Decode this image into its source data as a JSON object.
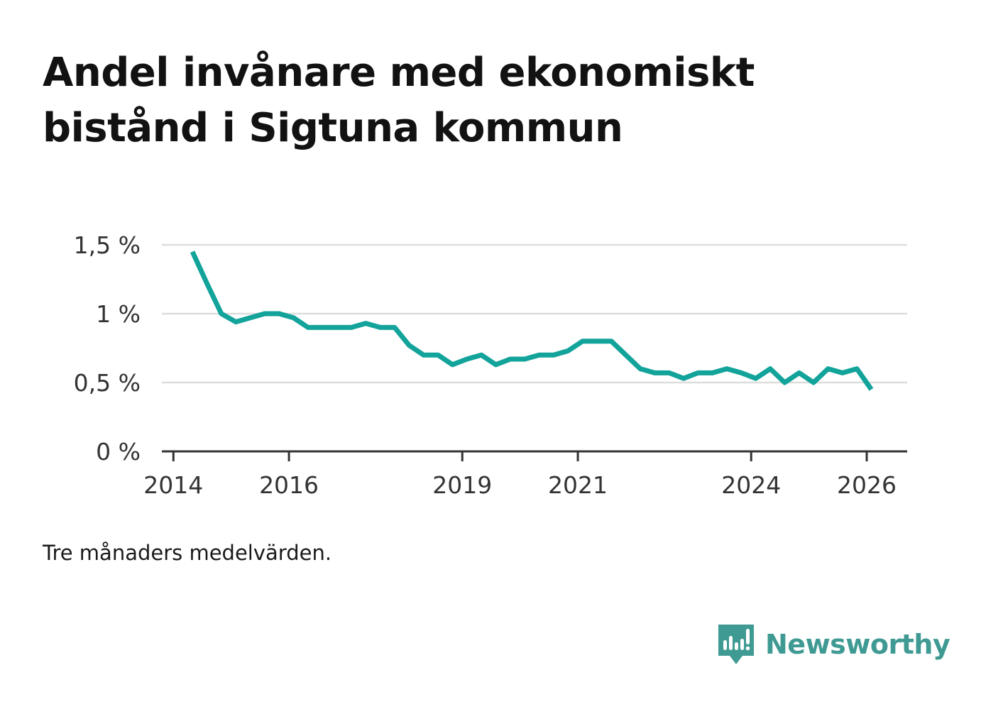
{
  "title_lines": [
    "Andel invånare med ekonomiskt",
    "bistånd i Sigtuna kommun"
  ],
  "caption": "Tre månaders medelvärden.",
  "brand": {
    "name": "Newsworthy",
    "icon": "newsworthy-logo-icon",
    "color": "#3f9a93"
  },
  "colors": {
    "line": "#12a39a",
    "grid": "#dddddd",
    "axis": "#333333"
  },
  "chart_data": {
    "type": "line",
    "title": "Andel invånare med ekonomiskt bistånd i Sigtuna kommun",
    "xlabel": "",
    "ylabel": "",
    "xlim": [
      2013.8,
      2026.7
    ],
    "ylim": [
      0,
      1.5
    ],
    "y_ticks": [
      {
        "value": 0,
        "label": "0 %"
      },
      {
        "value": 0.5,
        "label": "0,5 %"
      },
      {
        "value": 1,
        "label": "1 %"
      },
      {
        "value": 1.5,
        "label": "1,5 %"
      }
    ],
    "x_ticks": [
      {
        "value": 2014,
        "label": "2014"
      },
      {
        "value": 2016,
        "label": "2016"
      },
      {
        "value": 2019,
        "label": "2019"
      },
      {
        "value": 2021,
        "label": "2021"
      },
      {
        "value": 2024,
        "label": "2024"
      },
      {
        "value": 2026,
        "label": "2026"
      }
    ],
    "grid": true,
    "series": [
      {
        "name": "Andel invånare med ekonomiskt bistånd",
        "x": [
          2014.33,
          2014.58,
          2014.83,
          2015.08,
          2015.33,
          2015.58,
          2015.83,
          2016.08,
          2016.33,
          2016.58,
          2016.83,
          2017.08,
          2017.33,
          2017.58,
          2017.83,
          2018.08,
          2018.33,
          2018.58,
          2018.83,
          2019.08,
          2019.33,
          2019.58,
          2019.83,
          2020.08,
          2020.33,
          2020.58,
          2020.83,
          2021.08,
          2021.33,
          2021.58,
          2021.83,
          2022.08,
          2022.33,
          2022.58,
          2022.83,
          2023.08,
          2023.33,
          2023.58,
          2023.83,
          2024.08,
          2024.33,
          2024.58,
          2024.83,
          2025.08,
          2025.33,
          2025.58,
          2025.83,
          2026.08
        ],
        "values": [
          1.45,
          1.22,
          1.0,
          0.94,
          0.97,
          1.0,
          1.0,
          0.97,
          0.9,
          0.9,
          0.9,
          0.9,
          0.93,
          0.9,
          0.9,
          0.77,
          0.7,
          0.7,
          0.63,
          0.67,
          0.7,
          0.63,
          0.67,
          0.67,
          0.7,
          0.7,
          0.73,
          0.8,
          0.8,
          0.8,
          0.7,
          0.6,
          0.57,
          0.57,
          0.53,
          0.57,
          0.57,
          0.6,
          0.57,
          0.53,
          0.6,
          0.5,
          0.57,
          0.5,
          0.6,
          0.57,
          0.6,
          0.45
        ]
      }
    ]
  }
}
